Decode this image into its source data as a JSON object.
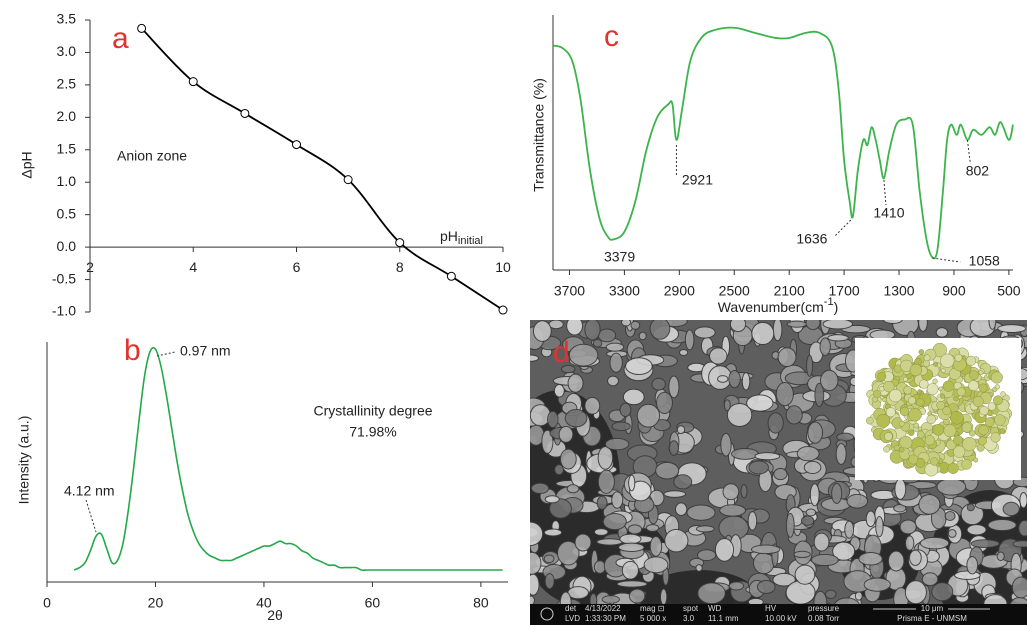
{
  "chart_data": [
    {
      "type": "line",
      "panel_label": "a",
      "marker": "circle-open",
      "x": [
        3,
        4,
        5,
        6,
        7,
        8,
        9,
        10
      ],
      "values": [
        3.37,
        2.55,
        2.06,
        1.58,
        1.04,
        0.07,
        -0.45,
        -0.97
      ],
      "color": "#000000",
      "xlim": [
        2,
        10
      ],
      "xticks": [
        2,
        4,
        6,
        8,
        10
      ],
      "ylim": [
        -1,
        3.5
      ],
      "yticks": [
        3.5,
        {
          "value": 3,
          "label": "3.0"
        },
        2.5,
        {
          "value": 2,
          "label": "2.0"
        },
        1.5,
        {
          "value": 1,
          "label": "1.0"
        },
        0.5,
        {
          "value": 0,
          "label": "0.0"
        },
        -0.5,
        {
          "value": -1,
          "label": "-1.0"
        }
      ],
      "y_label": "ΔpH",
      "x_label": "pH",
      "x_label_sub": "initial",
      "annotations": [
        "Anion zone"
      ]
    },
    {
      "type": "line",
      "panel_label": "b",
      "x": [
        5,
        6,
        7,
        8,
        9,
        10,
        11,
        12,
        13,
        14,
        15,
        16,
        17,
        18,
        19,
        20,
        21,
        22,
        23,
        24,
        25,
        26,
        27,
        28,
        29,
        30,
        31,
        32,
        33,
        34,
        35,
        36,
        37,
        38,
        39,
        40,
        41,
        42,
        43,
        44,
        45,
        46,
        47,
        48,
        49,
        50,
        51,
        52,
        53,
        54,
        55,
        56,
        57,
        58,
        59,
        60,
        62,
        64,
        66,
        68,
        70,
        72,
        74,
        76,
        78,
        80,
        82,
        84
      ],
      "values": [
        5,
        6,
        8,
        13,
        19,
        20,
        14,
        8,
        9,
        16,
        30,
        48,
        68,
        86,
        96,
        97,
        90,
        78,
        64,
        50,
        38,
        28,
        21,
        16,
        13,
        11,
        10,
        9,
        9,
        9,
        10,
        11,
        12,
        13,
        14,
        15,
        15,
        16,
        17,
        16,
        16,
        15,
        13,
        12,
        10,
        9,
        8,
        7,
        7,
        6,
        6,
        6,
        6,
        5,
        5,
        5,
        5,
        5,
        5,
        5,
        5,
        5,
        5,
        5,
        5,
        5,
        5,
        5
      ],
      "color": "#22a94a",
      "xlim": [
        0,
        85
      ],
      "xticks": [
        0,
        20,
        40,
        60,
        80
      ],
      "ylim": [
        0,
        100
      ],
      "y_label": "Intensity (a.u.)",
      "x_label": "2θ",
      "annotations": [
        "0.97 nm",
        "4.12 nm",
        "Crystallinity degree",
        "71.98%"
      ]
    },
    {
      "type": "line",
      "panel_label": "c",
      "x": [
        3820,
        3750,
        3680,
        3620,
        3550,
        3480,
        3420,
        3379,
        3300,
        3220,
        3140,
        3060,
        2980,
        2950,
        2921,
        2880,
        2820,
        2740,
        2650,
        2500,
        2350,
        2200,
        2100,
        1980,
        1880,
        1790,
        1740,
        1700,
        1660,
        1636,
        1600,
        1560,
        1530,
        1500,
        1470,
        1440,
        1410,
        1370,
        1320,
        1260,
        1200,
        1150,
        1100,
        1058,
        1020,
        980,
        950,
        920,
        880,
        850,
        802,
        760,
        700,
        640,
        600,
        560,
        500,
        470
      ],
      "values": [
        88,
        87,
        82,
        67,
        39,
        20,
        13,
        12,
        15,
        27,
        47,
        60,
        65,
        65,
        51,
        63,
        82,
        91,
        94,
        95,
        93,
        91,
        91,
        93,
        93,
        88,
        71,
        43,
        27,
        21,
        39,
        51,
        49,
        56,
        51,
        43,
        36,
        47,
        57,
        59,
        57,
        31,
        12,
        5,
        8,
        31,
        51,
        57,
        53,
        57,
        51,
        55,
        53,
        56,
        53,
        58,
        51,
        57
      ],
      "color": "#3cb44b",
      "xlim": [
        3820,
        470
      ],
      "xticks": [
        3700,
        3300,
        2900,
        2500,
        2100,
        1700,
        1300,
        900,
        500
      ],
      "ylim": [
        0,
        100
      ],
      "y_label": "Transmittance (%)",
      "x_label": "Wavenumber(cm",
      "x_label_sup": "-1",
      "x_label_end": ")",
      "peaks": [
        3379,
        2921,
        1636,
        1410,
        1058,
        802
      ]
    }
  ],
  "image": {
    "panel_label": "d",
    "info_bar": [
      [
        "det",
        "LVD"
      ],
      [
        "4/13/2022",
        "1:33:30 PM"
      ],
      [
        "mag ⊡",
        "5 000 x"
      ],
      [
        "spot",
        "3.0"
      ],
      [
        "WD",
        "11.1 mm"
      ],
      [
        "HV",
        "10.00 kV"
      ],
      [
        "pressure",
        "0.08 Torr"
      ]
    ],
    "scale_bar": "10 μm",
    "facility": "Prisma E - UNMSM"
  }
}
